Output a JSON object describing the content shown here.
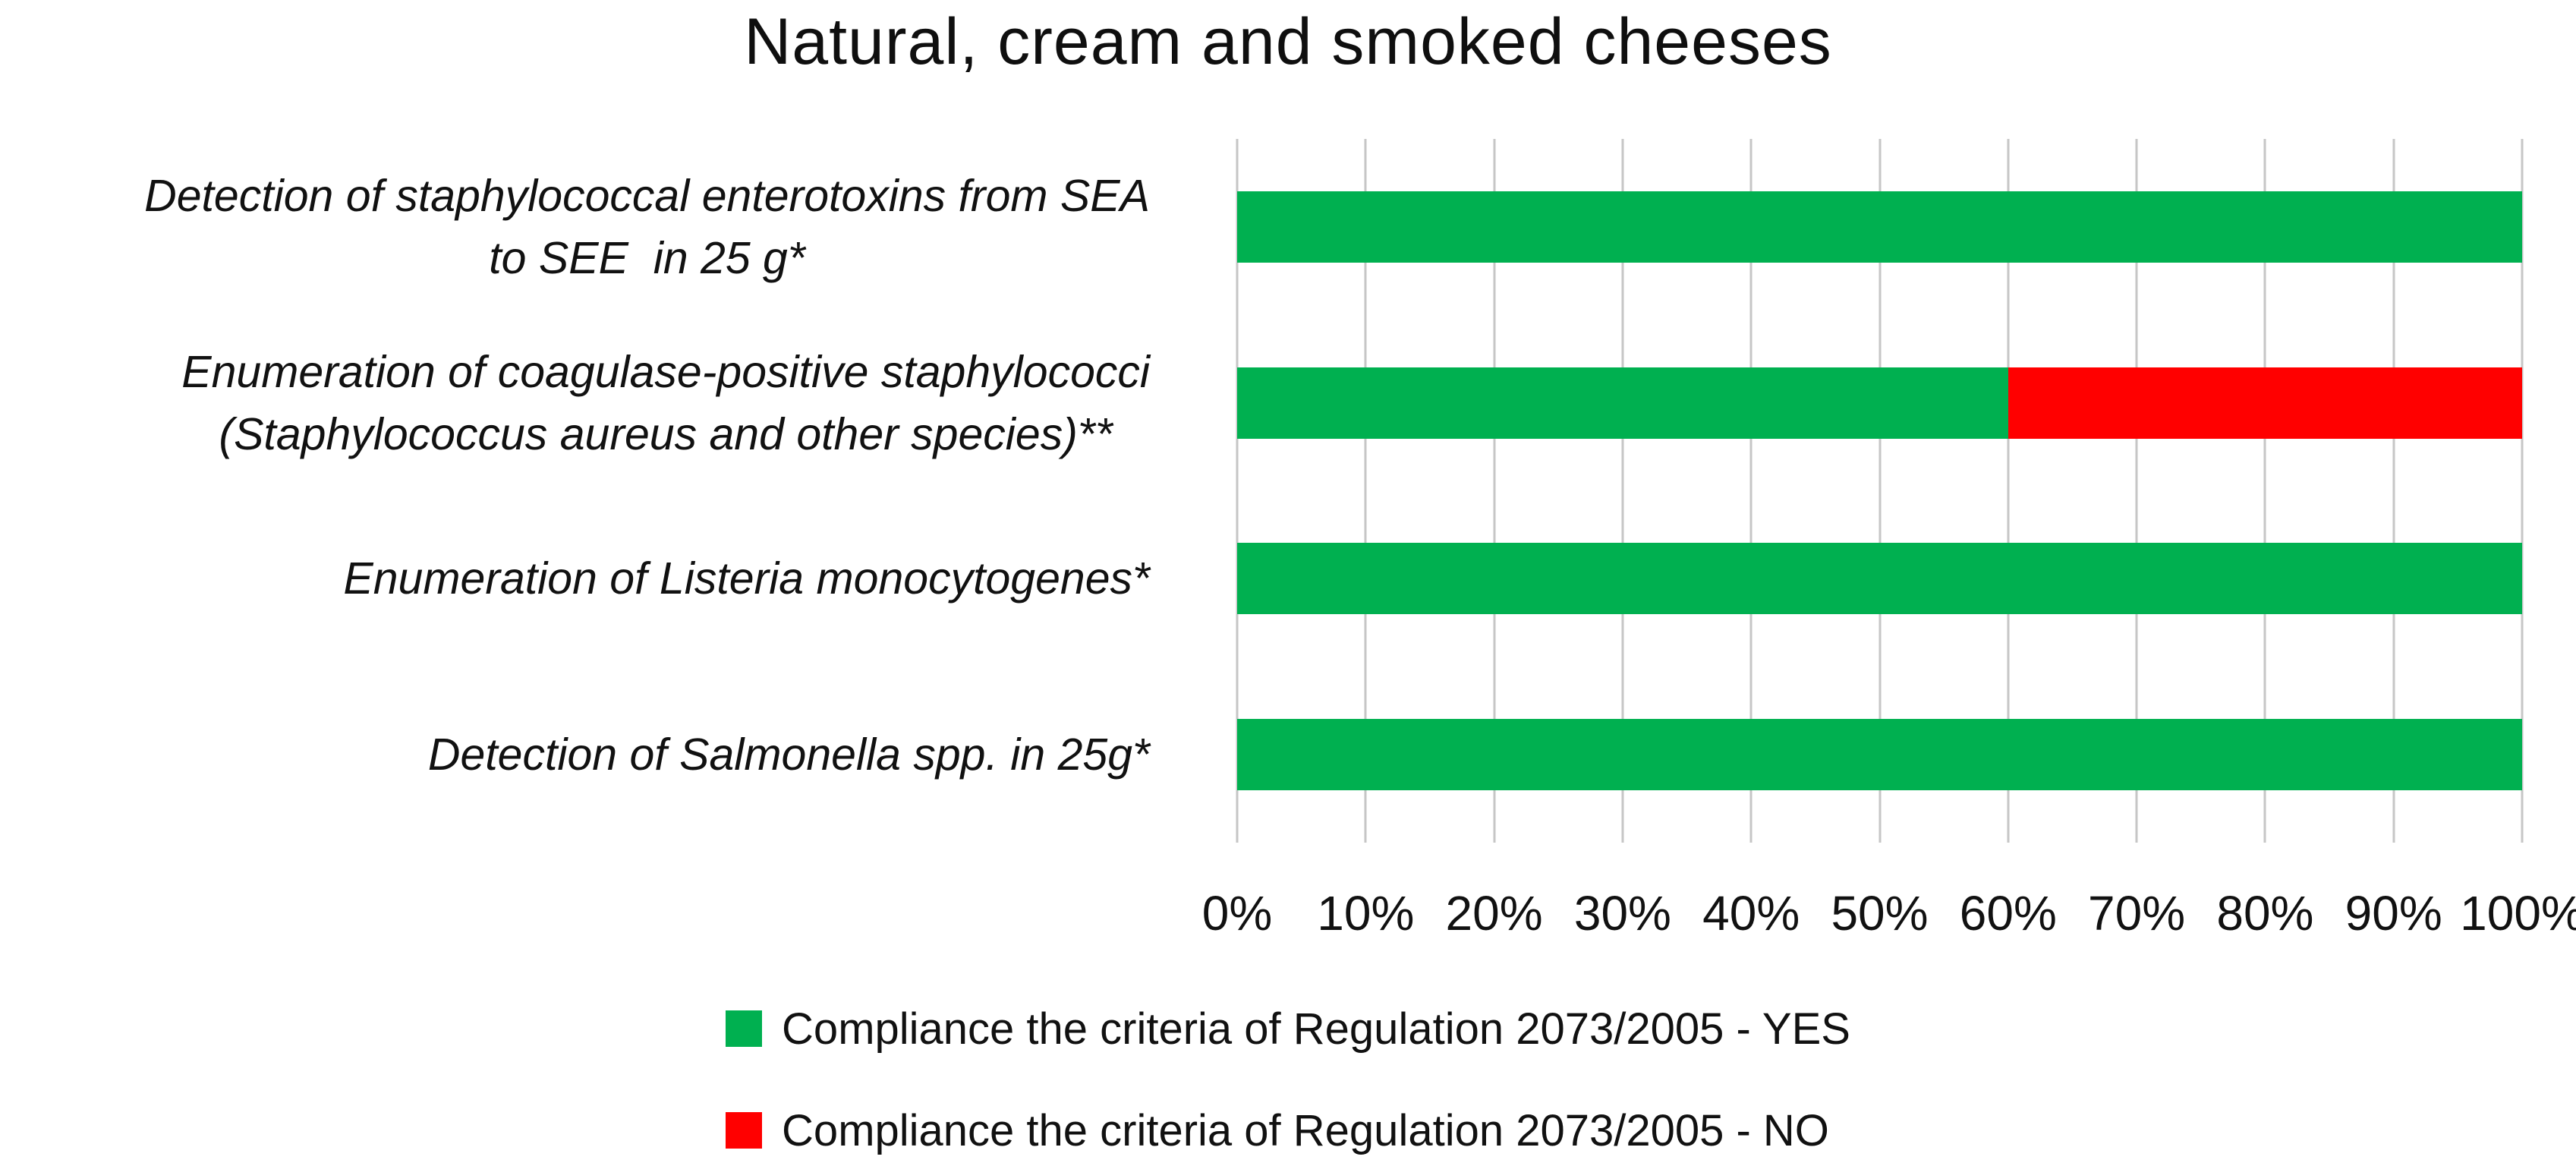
{
  "title": "Natural, cream and smoked cheeses",
  "chart_data": {
    "type": "bar",
    "orientation": "horizontal",
    "stacked": true,
    "title": "Natural, cream and smoked cheeses",
    "categories": [
      "Detection of staphylococcal enterotoxins from SEA to SEE  in 25 g*",
      "Enumeration of coagulase-positive staphylococci (Staphylococcus aureus and other species)**",
      "Enumeration of Listeria monocytogenes*",
      "Detection of Salmonella spp. in 25g*"
    ],
    "category_lines": [
      [
        "Detection of staphylococcal enterotoxins from SEA",
        "to SEE  in 25 g*"
      ],
      [
        "Enumeration of coagulase-positive staphylococci",
        "(Staphylococcus aureus and other species)**"
      ],
      [
        "Enumeration of Listeria monocytogenes*"
      ],
      [
        "Detection of Salmonella spp. in 25g*"
      ]
    ],
    "series": [
      {
        "name": "Compliance the criteria of Regulation 2073/2005 - YES",
        "color": "#00B050",
        "values": [
          100,
          60,
          100,
          100
        ]
      },
      {
        "name": "Compliance the criteria of Regulation 2073/2005 - NO",
        "color": "#FF0000",
        "values": [
          0,
          40,
          0,
          0
        ]
      }
    ],
    "xlim": [
      0,
      100
    ],
    "x_tick_step": 10,
    "x_ticks": [
      "0%",
      "10%",
      "20%",
      "30%",
      "40%",
      "50%",
      "60%",
      "70%",
      "80%",
      "90%",
      "100%"
    ],
    "grid": "vertical",
    "legend_position": "bottom"
  },
  "legend": {
    "items": [
      {
        "label": "Compliance the criteria of Regulation 2073/2005 - YES",
        "color": "#00B050"
      },
      {
        "label": "Compliance the criteria of Regulation 2073/2005 - NO",
        "color": "#FF0000"
      }
    ]
  },
  "colors": {
    "yes": "#00B050",
    "no": "#FF0000",
    "gridline": "#C6C6C6",
    "text": "#111111",
    "background": "#FFFFFF"
  }
}
